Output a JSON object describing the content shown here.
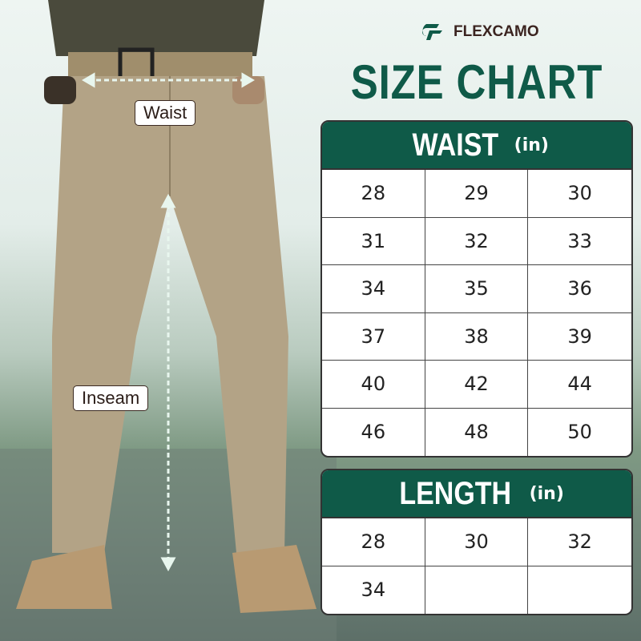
{
  "brand": {
    "name": "FLEXCAMO",
    "color": "#0f5a48"
  },
  "title": "SIZE CHART",
  "photo": {
    "waist_label": "Waist",
    "inseam_label": "Inseam"
  },
  "waist": {
    "heading": "WAIST",
    "unit": "(in)",
    "sizes": [
      "28",
      "29",
      "30",
      "31",
      "32",
      "33",
      "34",
      "35",
      "36",
      "37",
      "38",
      "39",
      "40",
      "42",
      "44",
      "46",
      "48",
      "50"
    ]
  },
  "length": {
    "heading": "LENGTH",
    "unit": "(in)",
    "sizes": [
      "28",
      "30",
      "32",
      "34",
      "",
      ""
    ]
  }
}
